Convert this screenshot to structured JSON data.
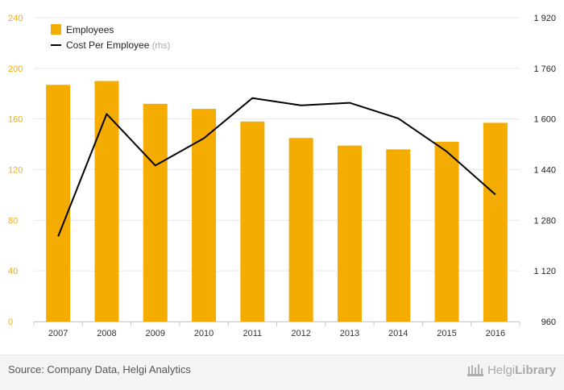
{
  "chart_data": {
    "type": "bar",
    "categories": [
      "2007",
      "2008",
      "2009",
      "2010",
      "2011",
      "2012",
      "2013",
      "2014",
      "2015",
      "2016"
    ],
    "series": [
      {
        "name": "Employees",
        "type": "bar",
        "axis": "left",
        "color": "#f5ac00",
        "values": [
          187,
          190,
          172,
          168,
          158,
          145,
          139,
          136,
          142,
          157
        ]
      },
      {
        "name": "Cost Per Employee",
        "name_suffix": "(rhs)",
        "type": "line",
        "axis": "right",
        "color": "#000000",
        "values": [
          1229,
          1616,
          1453,
          1539,
          1666,
          1643,
          1651,
          1602,
          1497,
          1361
        ]
      }
    ],
    "left_axis": {
      "ylim": [
        0,
        240
      ],
      "ticks": [
        0,
        40,
        80,
        120,
        160,
        200,
        240
      ],
      "tick_labels": [
        "0",
        "40",
        "80",
        "120",
        "160",
        "200",
        "240"
      ],
      "label_color": "#f5ac00"
    },
    "right_axis": {
      "ylim": [
        960,
        1920
      ],
      "ticks": [
        960,
        1120,
        1280,
        1440,
        1600,
        1760,
        1920
      ],
      "tick_labels": [
        "960",
        "1 120",
        "1 280",
        "1 440",
        "1 600",
        "1 760",
        "1 920"
      ],
      "label_color": "#222222"
    },
    "grid": true,
    "legend": {
      "placement": "top-left"
    }
  },
  "footer": {
    "source": "Source: Company Data, Helgi Analytics",
    "brand_prefix": "Helgi",
    "brand_suffix": "Library"
  }
}
